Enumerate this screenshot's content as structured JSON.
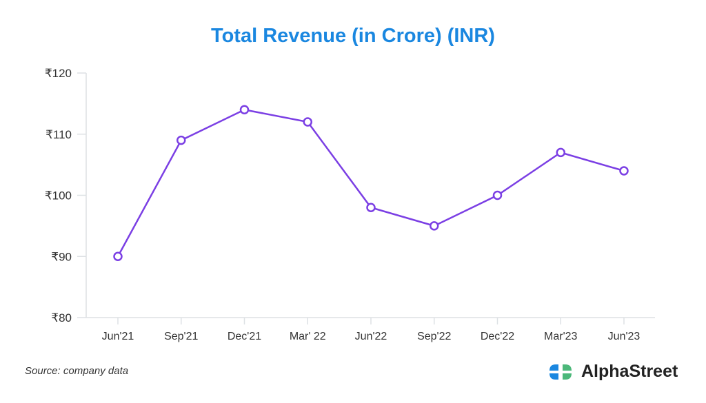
{
  "chart_data": {
    "type": "line",
    "title": "Total Revenue (in Crore) (INR)",
    "xlabel": "",
    "ylabel": "",
    "categories": [
      "Jun'21",
      "Sep'21",
      "Dec'21",
      "Mar' 22",
      "Jun'22",
      "Sep'22",
      "Dec'22",
      "Mar'23",
      "Jun'23"
    ],
    "series": [
      {
        "name": "Total Revenue",
        "values": [
          90,
          109,
          114,
          112,
          98,
          95,
          100,
          107,
          104
        ],
        "color": "#7b3fe4"
      }
    ],
    "ylim": [
      80,
      120
    ],
    "yticks": [
      80,
      90,
      100,
      110,
      120
    ],
    "ytick_prefix": "₹",
    "grid": false,
    "legend": "none"
  },
  "footer": {
    "source": "Source: company data",
    "brand": "AlphaStreet"
  },
  "colors": {
    "title": "#1a87e0",
    "line": "#7b3fe4",
    "axis": "#dde1e4",
    "logo_blue": "#1a87e0",
    "logo_green": "#4cb87a"
  }
}
